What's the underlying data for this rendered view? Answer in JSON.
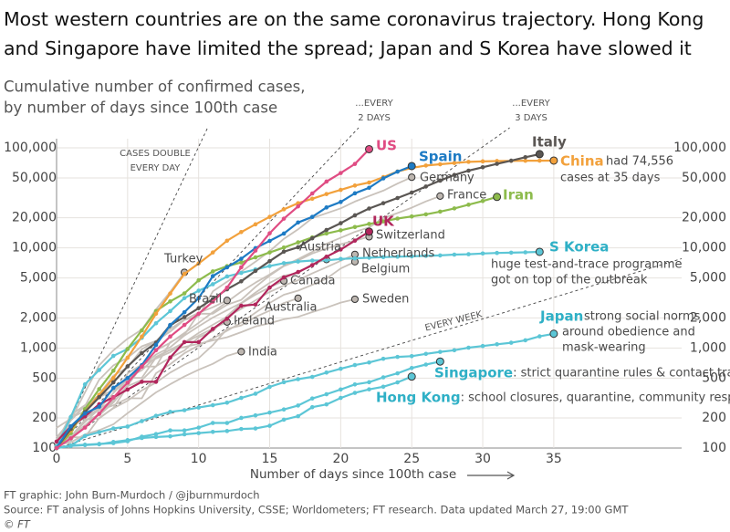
{
  "chart_data": {
    "type": "line",
    "title": [
      "Most western countries are on the same coronavirus trajectory. Hong Kong",
      "and Singapore have limited the spread; Japan and S Korea have slowed it"
    ],
    "subtitle": [
      "Cumulative number of confirmed cases,",
      "by number of days since 100th case"
    ],
    "x_label": "Number of days since 100th case",
    "x": [
      0,
      1,
      2,
      3,
      4,
      5,
      6,
      7,
      8,
      9,
      10,
      11,
      12,
      13,
      14,
      15,
      16,
      17,
      18,
      19,
      20,
      21,
      22,
      23,
      24,
      25,
      26,
      27,
      28,
      29,
      30,
      31,
      32,
      33,
      34,
      35
    ],
    "xlim": [
      0,
      44
    ],
    "xticks": [
      0,
      5,
      10,
      15,
      20,
      25,
      30,
      35
    ],
    "ylim": [
      100,
      100000
    ],
    "log_y": true,
    "grid": true,
    "yticks": [
      100,
      200,
      500,
      {
        "value": 1000,
        "label": "1,000"
      },
      {
        "value": 2000,
        "label": "2,000"
      },
      {
        "value": 5000,
        "label": "5,000"
      },
      {
        "value": 10000,
        "label": "10,000"
      },
      {
        "value": 20000,
        "label": "20,000"
      },
      {
        "value": 50000,
        "label": "50,000"
      },
      {
        "value": 100000,
        "label": "100,000"
      }
    ],
    "reference_lines": [
      {
        "label": [
          "CASES DOUBLE",
          "EVERY DAY"
        ],
        "doubling_days": 1
      },
      {
        "label": [
          "...EVERY",
          "2 DAYS"
        ],
        "doubling_days": 2
      },
      {
        "label": [
          "...EVERY",
          "3 DAYS"
        ],
        "doubling_days": 3
      },
      {
        "label": [
          "EVERY WEEK"
        ],
        "doubling_days": 7
      }
    ],
    "series": [
      {
        "name": "Germany",
        "color": "#c9c2bb",
        "highlight": false,
        "values": [
          159,
          196,
          262,
          482,
          670,
          799,
          1040,
          1176,
          1457,
          1908,
          2078,
          3675,
          4585,
          5795,
          7272,
          9257,
          12327,
          15320,
          19848,
          22213,
          24873,
          29056,
          32986,
          37323,
          43938,
          50871,
          null,
          null,
          null,
          null,
          null,
          null,
          null,
          null,
          null,
          null
        ]
      },
      {
        "name": "France",
        "color": "#c9c2bb",
        "highlight": false,
        "values": [
          100,
          130,
          191,
          212,
          285,
          423,
          653,
          949,
          1126,
          1412,
          1784,
          2281,
          2876,
          3661,
          4499,
          5423,
          6633,
          7730,
          9134,
          10995,
          12612,
          14459,
          16018,
          19856,
          22304,
          25233,
          29155,
          32964,
          null,
          null,
          null,
          null,
          null,
          null,
          null,
          null
        ]
      },
      {
        "name": "Switzerland",
        "color": "#c9c2bb",
        "highlight": false,
        "values": [
          114,
          214,
          268,
          337,
          374,
          491,
          652,
          652,
          1139,
          1359,
          2200,
          2200,
          2700,
          3028,
          4075,
          5294,
          6575,
          7474,
          8795,
          9877,
          10897,
          11811,
          12928,
          null,
          null,
          null,
          null,
          null,
          null,
          null,
          null,
          null,
          null,
          null,
          null,
          null
        ]
      },
      {
        "name": "Netherlands",
        "color": "#c9c2bb",
        "highlight": false,
        "values": [
          128,
          188,
          265,
          321,
          382,
          503,
          503,
          804,
          959,
          1135,
          1413,
          1705,
          2051,
          2460,
          2994,
          3631,
          4204,
          4749,
          5560,
          6412,
          7431,
          8603,
          null,
          null,
          null,
          null,
          null,
          null,
          null,
          null,
          null,
          null,
          null,
          null,
          null,
          null
        ]
      },
      {
        "name": "Belgium",
        "color": "#c9c2bb",
        "highlight": false,
        "values": [
          109,
          169,
          200,
          239,
          267,
          314,
          314,
          559,
          689,
          886,
          1058,
          1243,
          1486,
          1795,
          2257,
          2815,
          3401,
          3743,
          4269,
          4937,
          6235,
          7284,
          null,
          null,
          null,
          null,
          null,
          null,
          null,
          null,
          null,
          null,
          null,
          null,
          null,
          null
        ]
      },
      {
        "name": "Austria",
        "color": "#c9c2bb",
        "highlight": false,
        "values": [
          104,
          131,
          182,
          246,
          302,
          504,
          655,
          860,
          1016,
          1332,
          1646,
          2013,
          2388,
          2814,
          3582,
          4474,
          5283,
          5588,
          6909,
          7657,
          null,
          null,
          null,
          null,
          null,
          null,
          null,
          null,
          null,
          null,
          null,
          null,
          null,
          null,
          null,
          null
        ]
      },
      {
        "name": "Canada",
        "color": "#c9c2bb",
        "highlight": false,
        "values": [
          108,
          117,
          193,
          198,
          252,
          415,
          478,
          657,
          800,
          943,
          1277,
          1469,
          2088,
          2790,
          3409,
          4043,
          4682,
          null,
          null,
          null,
          null,
          null,
          null,
          null,
          null,
          null,
          null,
          null,
          null,
          null,
          null,
          null,
          null,
          null,
          null,
          null
        ]
      },
      {
        "name": "Australia",
        "color": "#c9c2bb",
        "highlight": false,
        "values": [
          107,
          128,
          128,
          200,
          250,
          297,
          377,
          452,
          568,
          681,
          791,
          1071,
          1549,
          1682,
          2044,
          2364,
          2810,
          3143,
          null,
          null,
          null,
          null,
          null,
          null,
          null,
          null,
          null,
          null,
          null,
          null,
          null,
          null,
          null,
          null,
          null,
          null
        ]
      },
      {
        "name": "Sweden",
        "color": "#c9c2bb",
        "highlight": false,
        "values": [
          100,
          161,
          203,
          248,
          355,
          500,
          599,
          814,
          961,
          1022,
          1103,
          1190,
          1279,
          1439,
          1639,
          1763,
          1934,
          2046,
          2286,
          2526,
          2840,
          3069,
          null,
          null,
          null,
          null,
          null,
          null,
          null,
          null,
          null,
          null,
          null,
          null,
          null,
          null
        ]
      },
      {
        "name": "Turkey",
        "color": "#c9c2bb",
        "highlight": false,
        "values": [
          100,
          191,
          359,
          670,
          947,
          1236,
          1529,
          2433,
          3629,
          5698,
          null,
          null,
          null,
          null,
          null,
          null,
          null,
          null,
          null,
          null,
          null,
          null,
          null,
          null,
          null,
          null,
          null,
          null,
          null,
          null,
          null,
          null,
          null,
          null,
          null,
          null
        ]
      },
      {
        "name": "Brazil",
        "color": "#c9c2bb",
        "highlight": false,
        "values": [
          121,
          200,
          234,
          346,
          529,
          640,
          970,
          1178,
          1546,
          1924,
          2247,
          2554,
          2985,
          null,
          null,
          null,
          null,
          null,
          null,
          null,
          null,
          null,
          null,
          null,
          null,
          null,
          null,
          null,
          null,
          null,
          null,
          null,
          null,
          null,
          null,
          null
        ]
      },
      {
        "name": "Ireland",
        "color": "#c9c2bb",
        "highlight": false,
        "values": [
          100,
          129,
          169,
          223,
          292,
          557,
          683,
          785,
          906,
          1125,
          1329,
          1564,
          1819,
          null,
          null,
          null,
          null,
          null,
          null,
          null,
          null,
          null,
          null,
          null,
          null,
          null,
          null,
          null,
          null,
          null,
          null,
          null,
          null,
          null,
          null,
          null
        ]
      },
      {
        "name": "India",
        "color": "#c9c2bb",
        "highlight": false,
        "values": [
          107,
          114,
          137,
          151,
          173,
          223,
          283,
          360,
          434,
          519,
          606,
          694,
          834,
          918,
          null,
          null,
          null,
          null,
          null,
          null,
          null,
          null,
          null,
          null,
          null,
          null,
          null,
          null,
          null,
          null,
          null,
          null,
          null,
          null,
          null,
          null
        ]
      },
      {
        "name": "Hong Kong",
        "color": "#5cc6d6",
        "highlight": true,
        "note": [
          ": school closures, quarantine, community response"
        ],
        "values": [
          100,
          105,
          107,
          109,
          115,
          120,
          126,
          129,
          131,
          137,
          141,
          145,
          148,
          155,
          157,
          167,
          192,
          208,
          256,
          273,
          317,
          356,
          386,
          410,
          453,
          518,
          null,
          null,
          null,
          null,
          null,
          null,
          null,
          null,
          null,
          null
        ]
      },
      {
        "name": "Singapore",
        "color": "#5cc6d6",
        "highlight": true,
        "note": [
          ": strict quarantine rules & contact tracing"
        ],
        "values": [
          100,
          106,
          108,
          110,
          112,
          117,
          130,
          138,
          150,
          150,
          160,
          178,
          178,
          200,
          212,
          226,
          243,
          266,
          313,
          345,
          385,
          432,
          455,
          509,
          558,
          631,
          683,
          732,
          null,
          null,
          null,
          null,
          null,
          null,
          null,
          null
        ]
      },
      {
        "name": "Japan",
        "color": "#5cc6d6",
        "highlight": true,
        "note": [
          "strong social norms",
          "around obedience and",
          "mask-wearing"
        ],
        "values": [
          100,
          105,
          132,
          144,
          157,
          164,
          186,
          210,
          230,
          239,
          254,
          268,
          284,
          317,
          349,
          408,
          455,
          488,
          514,
          568,
          620,
          675,
          716,
          780,
          814,
          829,
          873,
          914,
          950,
          1007,
          1046,
          1089,
          1128,
          1193,
          1307,
          1387
        ]
      },
      {
        "name": "S Korea",
        "color": "#5cc6d6",
        "highlight": true,
        "note": [
          "huge test-and-trace programme",
          "got on top of the outbreak"
        ],
        "values": [
          104,
          204,
          433,
          602,
          833,
          977,
          1261,
          1766,
          2337,
          3150,
          3736,
          4335,
          5186,
          5621,
          6088,
          6593,
          7041,
          7314,
          7478,
          7513,
          7755,
          7869,
          7979,
          8086,
          8162,
          8236,
          8320,
          8413,
          8565,
          8652,
          8799,
          8897,
          8961,
          9037,
          9137,
          null
        ]
      },
      {
        "name": "Iran",
        "color": "#8dbb4c",
        "highlight": true,
        "values": [
          100,
          141,
          245,
          388,
          593,
          978,
          1501,
          2336,
          2922,
          3513,
          4747,
          5823,
          6566,
          7161,
          8042,
          9000,
          10075,
          11364,
          12729,
          13938,
          14991,
          16169,
          17361,
          18407,
          19644,
          20610,
          21638,
          23049,
          24811,
          27017,
          29406,
          32332,
          null,
          null,
          null,
          null
        ]
      },
      {
        "name": "UK",
        "color": "#b1265c",
        "highlight": true,
        "values": [
          116,
          164,
          207,
          274,
          322,
          384,
          459,
          459,
          802,
          1144,
          1145,
          1551,
          1960,
          2642,
          2716,
          4014,
          5067,
          5745,
          6726,
          8164,
          9640,
          11812,
          14543,
          null,
          null,
          null,
          null,
          null,
          null,
          null,
          null,
          null,
          null,
          null,
          null,
          null
        ]
      },
      {
        "name": "China",
        "color": "#f2a13c",
        "highlight": true,
        "note": [
          "had 74,556",
          "cases at 35 days"
        ],
        "values": [
          100,
          150,
          230,
          340,
          500,
          800,
          1300,
          2200,
          3500,
          5500,
          7000,
          9000,
          11800,
          14400,
          17200,
          20400,
          24300,
          28000,
          31000,
          34500,
          38000,
          42000,
          45000,
          51000,
          58000,
          63000,
          66500,
          68500,
          70500,
          72400,
          73200,
          73800,
          74100,
          74300,
          74450,
          74556
        ]
      },
      {
        "name": "Italy",
        "color": "#5a5653",
        "highlight": true,
        "values": [
          100,
          155,
          229,
          322,
          453,
          655,
          888,
          1128,
          1694,
          2036,
          2502,
          3089,
          3858,
          4636,
          5883,
          7375,
          9172,
          10149,
          12462,
          15113,
          17660,
          21157,
          24747,
          27980,
          31506,
          35713,
          41035,
          47021,
          53578,
          59138,
          63927,
          69176,
          74386,
          80589,
          86498,
          null
        ]
      },
      {
        "name": "Spain",
        "color": "#1e7bc4",
        "highlight": true,
        "values": [
          100,
          165,
          222,
          259,
          400,
          500,
          673,
          1073,
          1695,
          2277,
          3146,
          5232,
          6391,
          7798,
          9942,
          11748,
          13910,
          17963,
          20410,
          25374,
          28768,
          35136,
          39885,
          49515,
          57786,
          65719,
          null,
          null,
          null,
          null,
          null,
          null,
          null,
          null,
          null,
          null
        ]
      },
      {
        "name": "US",
        "color": "#e04c83",
        "highlight": true,
        "values": [
          100,
          125,
          160,
          220,
          320,
          450,
          650,
          950,
          1300,
          1700,
          2200,
          2900,
          4000,
          6400,
          9400,
          14000,
          19600,
          26000,
          35000,
          46000,
          56000,
          69000,
          97000,
          null,
          null,
          null,
          null,
          null,
          null,
          null,
          null,
          null,
          null,
          null,
          null,
          null
        ]
      }
    ],
    "footer": [
      "FT graphic: John Burn-Murdoch / @jburnmurdoch",
      "Source: FT analysis of Johns Hopkins University, CSSE; Worldometers; FT research. Data updated March 27, 19:00 GMT",
      "© FT"
    ]
  }
}
